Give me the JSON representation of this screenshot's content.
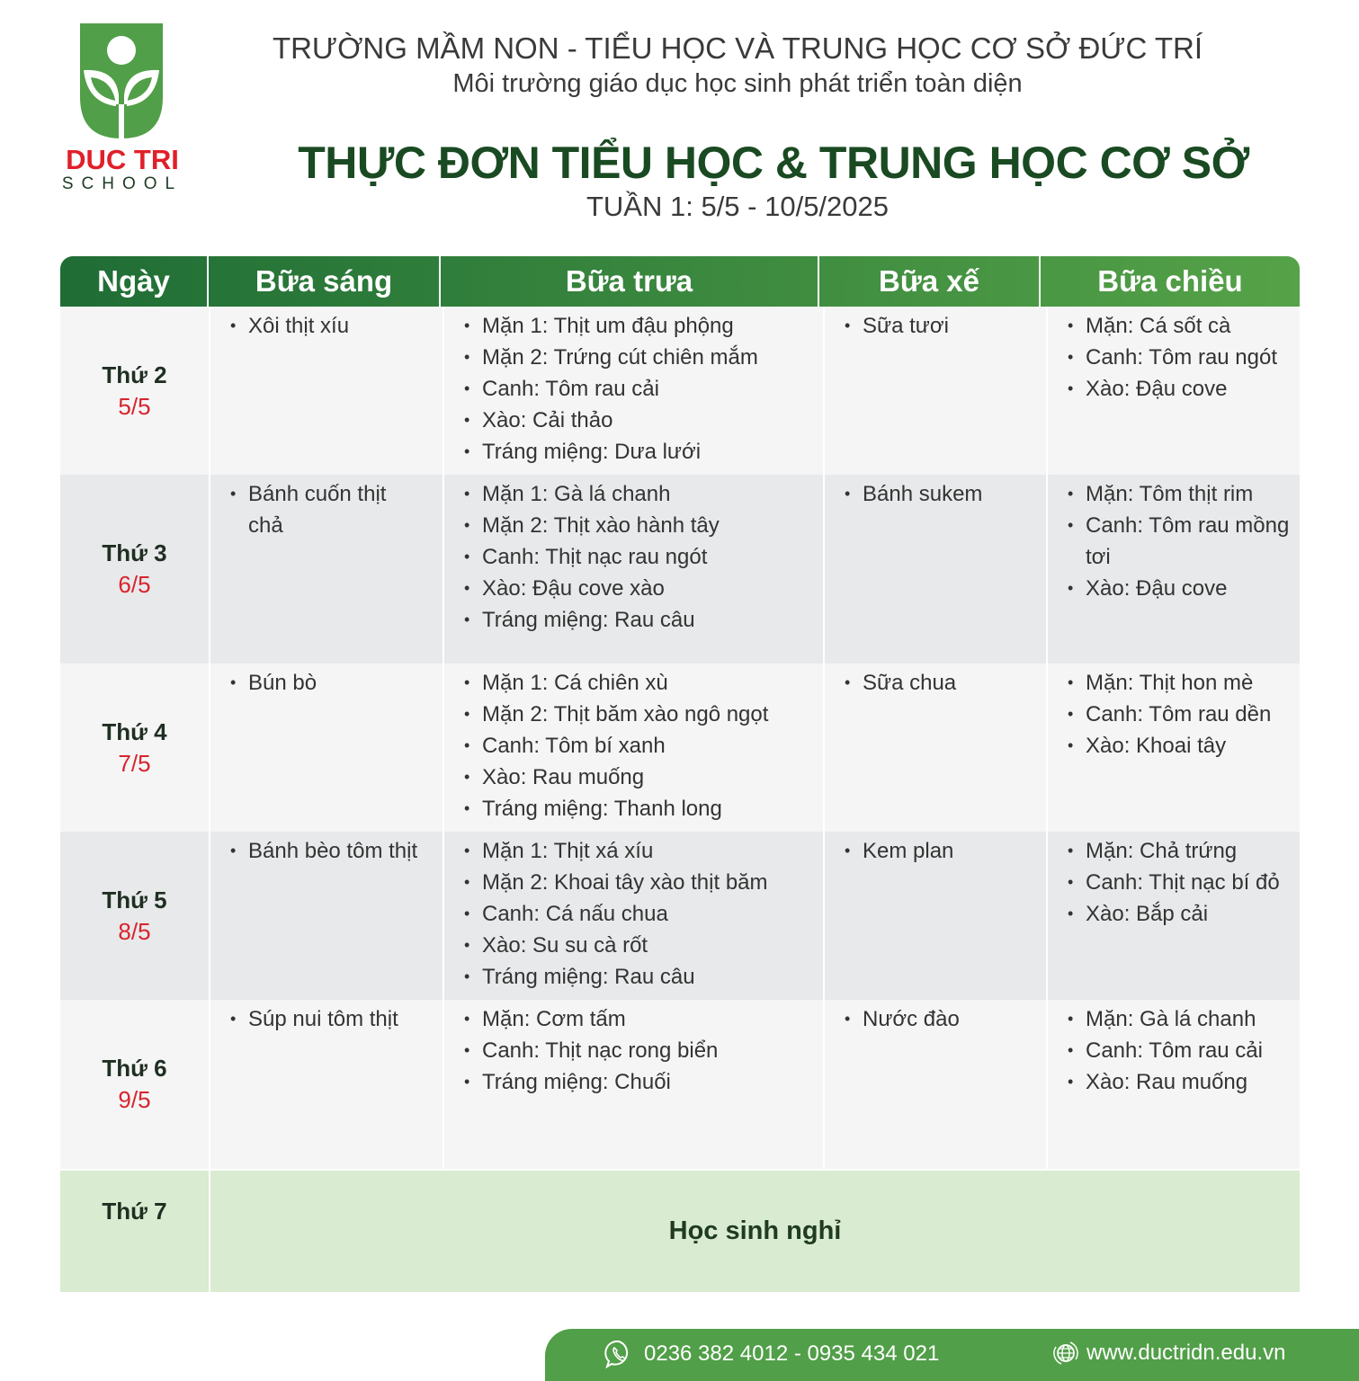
{
  "logo": {
    "name": "DUC TRI",
    "sub": "SCHOOL",
    "color": "#519f48"
  },
  "header": {
    "school": "TRƯỜNG MẦM NON - TIỂU HỌC VÀ TRUNG HỌC CƠ SỞ ĐỨC TRÍ",
    "slogan": "Môi trường giáo dục học sinh phát triển toàn diện",
    "title": "THỰC ĐƠN TIỂU HỌC & TRUNG HỌC CƠ SỞ",
    "week": "TUẦN 1: 5/5 - 10/5/2025"
  },
  "columns": [
    "Ngày",
    "Bữa sáng",
    "Bữa trưa",
    "Bữa xế",
    "Bữa chiều"
  ],
  "rows": [
    {
      "day": "Thứ 2",
      "date": "5/5",
      "breakfast": [
        "Xôi thịt xíu"
      ],
      "lunch": [
        "Mặn 1: Thịt um đậu phộng",
        "Mặn 2: Trứng cút chiên mắm",
        "Canh: Tôm rau cải",
        "Xào: Cải thảo",
        "Tráng miệng: Dưa lưới"
      ],
      "snack": [
        "Sữa tươi"
      ],
      "dinner": [
        "Mặn: Cá sốt cà",
        "Canh: Tôm rau ngót",
        "Xào: Đậu cove"
      ]
    },
    {
      "day": "Thứ 3",
      "date": "6/5",
      "breakfast": [
        "Bánh cuốn thịt chả"
      ],
      "lunch": [
        "Mặn 1:  Gà lá chanh",
        "Mặn 2: Thịt xào hành tây",
        "Canh: Thịt nạc rau ngót",
        "Xào: Đậu cove xào",
        "Tráng miệng: Rau câu"
      ],
      "snack": [
        "Bánh sukem"
      ],
      "dinner": [
        "Mặn: Tôm thịt rim",
        "Canh: Tôm rau mồng tơi",
        "Xào: Đậu cove"
      ]
    },
    {
      "day": "Thứ 4",
      "date": "7/5",
      "breakfast": [
        "Bún bò"
      ],
      "lunch": [
        "Mặn 1: Cá chiên xù",
        "Mặn 2: Thịt băm xào ngô ngọt",
        "Canh: Tôm bí xanh",
        "Xào:  Rau muống",
        "Tráng miệng: Thanh long"
      ],
      "snack": [
        "Sữa chua"
      ],
      "dinner": [
        "Mặn: Thịt hon mè",
        "Canh: Tôm rau dền",
        "Xào: Khoai tây"
      ]
    },
    {
      "day": "Thứ 5",
      "date": "8/5",
      "breakfast": [
        "Bánh bèo tôm thịt"
      ],
      "lunch": [
        "Mặn 1: Thịt xá xíu",
        "Mặn 2: Khoai tây xào thịt băm",
        "Canh: Cá nấu chua",
        "Xào: Su su cà rốt",
        "Tráng miệng: Rau câu"
      ],
      "snack": [
        "Kem plan"
      ],
      "dinner": [
        "Mặn: Chả trứng",
        "Canh: Thịt nạc bí đỏ",
        "Xào: Bắp cải"
      ]
    },
    {
      "day": "Thứ 6",
      "date": "9/5",
      "breakfast": [
        "Súp nui tôm thịt"
      ],
      "lunch": [
        "Mặn: Cơm tấm",
        "Canh: Thịt nạc rong biển",
        "Tráng miệng: Chuối"
      ],
      "snack": [
        "Nước đào"
      ],
      "dinner": [
        "Mặn: Gà lá chanh",
        "Canh: Tôm rau cải",
        "Xào:  Rau muống"
      ]
    }
  ],
  "saturday": {
    "day": "Thứ 7",
    "note": "Học sinh nghỉ"
  },
  "footer": {
    "phone": "0236 382 4012 - 0935 434 021",
    "website": "www.ductridn.edu.vn",
    "phone_icon": "phone-icon",
    "web_icon": "globe-icon"
  }
}
